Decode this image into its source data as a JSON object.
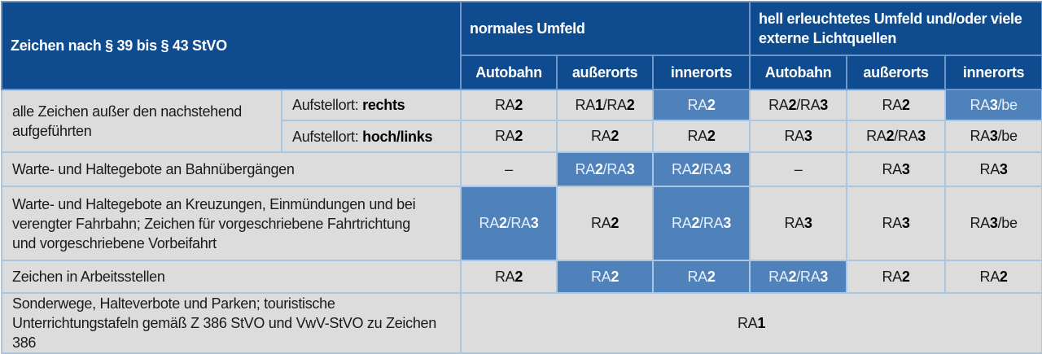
{
  "header": {
    "corner": "Zeichen nach § 39 bis § 43 StVO",
    "groups": [
      "normales Umfeld",
      "hell erleuchtetes Umfeld und/oder viele externe Lichtquellen"
    ],
    "columns": [
      "Autobahn",
      "außerorts",
      "innerorts",
      "Autobahn",
      "außerorts",
      "innerorts"
    ]
  },
  "rows": [
    {
      "label": "alle Zeichen außer den nachstehend aufgeführten",
      "sub": [
        {
          "prefix": "Aufstellort: ",
          "bold": "rechts",
          "values": [
            "RA2",
            "RA1/RA2",
            "RA2",
            "RA2/RA3",
            "RA2",
            "RA3/be"
          ],
          "highlight": [
            false,
            false,
            true,
            false,
            false,
            true
          ]
        },
        {
          "prefix": "Aufstellort: ",
          "bold": "hoch/links",
          "values": [
            "RA2",
            "RA2",
            "RA2",
            "RA3",
            "RA2/RA3",
            "RA3/be"
          ],
          "highlight": [
            false,
            false,
            false,
            false,
            false,
            false
          ]
        }
      ]
    },
    {
      "label": "Warte- und Haltegebote an Bahnübergängen",
      "values": [
        "–",
        "RA2/RA3",
        "RA2/RA3",
        "–",
        "RA3",
        "RA3"
      ],
      "highlight": [
        false,
        true,
        true,
        false,
        false,
        false
      ]
    },
    {
      "label": "Warte- und Haltegebote an Kreuzungen, Einmündungen und bei verengter Fahrbahn; Zeichen für vorgeschriebene Fahrtrichtung und vorgeschriebene Vorbeifahrt",
      "values": [
        "RA2/RA3",
        "RA2",
        "RA2/RA3",
        "RA3",
        "RA3",
        "RA3/be"
      ],
      "highlight": [
        true,
        false,
        true,
        false,
        false,
        false
      ]
    },
    {
      "label": "Zeichen in Arbeitsstellen",
      "values": [
        "RA2",
        "RA2",
        "RA2",
        "RA2/RA3",
        "RA2",
        "RA2"
      ],
      "highlight": [
        false,
        true,
        true,
        true,
        false,
        false
      ]
    },
    {
      "label": "Sonderwege, Halteverbote und Parken; touristische Unterrichtungstafeln gemäß Z 386 StVO und VwV-StVO zu Zeichen 386",
      "span_value": "RA1"
    }
  ],
  "colors": {
    "header": "#0f4c8f",
    "highlight": "#4f82bb",
    "cell": "#dcdcdc",
    "border": "#a9c6e3"
  }
}
